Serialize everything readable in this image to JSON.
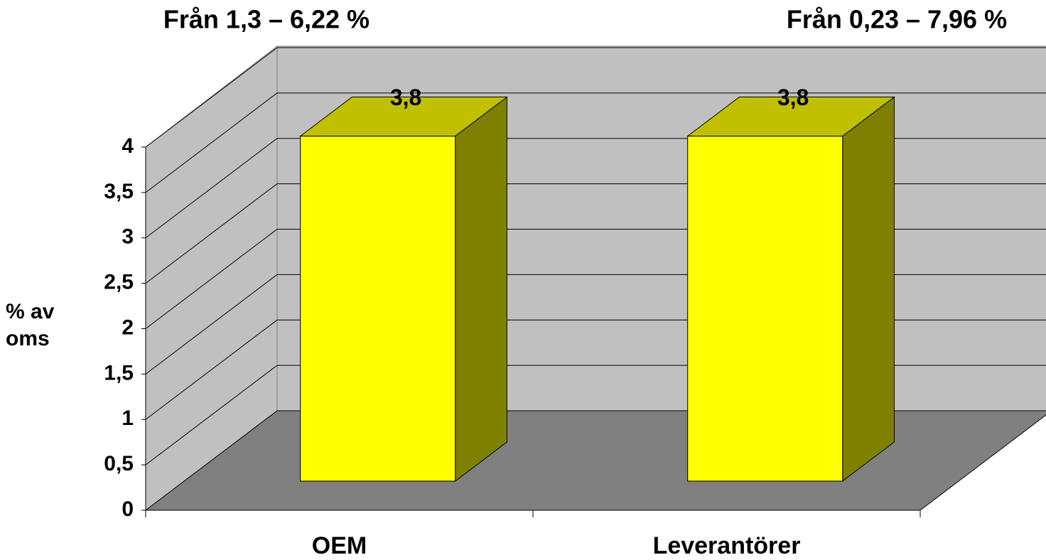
{
  "chart_data": {
    "type": "bar3d",
    "y_label": "% av oms",
    "annotations": [
      "Från 1,3 – 6,22 %",
      "Från 0,23 – 7,96 %"
    ],
    "categories": [
      "OEM",
      "Leverantörer"
    ],
    "values": [
      3.8,
      3.8
    ],
    "value_labels": [
      "3,8",
      "3,8"
    ],
    "color": "#ffff00",
    "ylim": [
      0,
      4
    ],
    "yticks": [
      0,
      {
        "value": 0.5,
        "label": "0,5"
      },
      1,
      {
        "value": 1.5,
        "label": "1,5"
      },
      2,
      {
        "value": 2.5,
        "label": "2,5"
      },
      3,
      {
        "value": 3.5,
        "label": "3,5"
      },
      4
    ],
    "grid": true
  }
}
